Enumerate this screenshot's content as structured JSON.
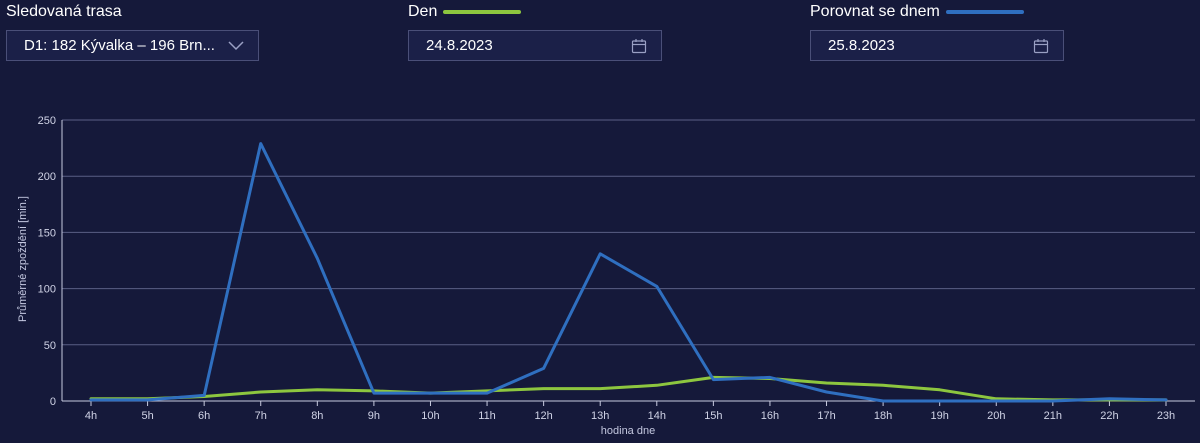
{
  "controls": {
    "route": {
      "label": "Sledovaná trasa",
      "value": "D1: 182 Kývalka – 196 Brn..."
    },
    "day": {
      "label": "Den",
      "value": "24.8.2023",
      "color": "#8dc63f"
    },
    "compare": {
      "label": "Porovnat se dnem",
      "value": "25.8.2023",
      "color": "#2f6fc0"
    }
  },
  "icons": {
    "dropdown": "chevron-down-icon",
    "calendar": "calendar-icon"
  },
  "chart_data": {
    "type": "line",
    "categories": [
      "4h",
      "5h",
      "6h",
      "7h",
      "8h",
      "9h",
      "10h",
      "11h",
      "12h",
      "13h",
      "14h",
      "15h",
      "16h",
      "17h",
      "18h",
      "19h",
      "20h",
      "21h",
      "22h",
      "23h"
    ],
    "series": [
      {
        "name": "Den",
        "color": "#8dc63f",
        "values": [
          2,
          2,
          4,
          8,
          10,
          9,
          7,
          9,
          11,
          11,
          14,
          21,
          20,
          16,
          14,
          10,
          2,
          1,
          1,
          1
        ]
      },
      {
        "name": "Porovnat se dnem",
        "color": "#2f6fc0",
        "values": [
          1,
          1,
          5,
          229,
          127,
          7,
          7,
          7,
          29,
          131,
          102,
          19,
          21,
          8,
          0,
          0,
          0,
          0,
          2,
          1
        ]
      }
    ],
    "xlabel": "hodina dne",
    "ylabel": "Průměrné zpoždění [min.]",
    "ylim": [
      0,
      250
    ],
    "yticks": [
      0,
      50,
      100,
      150,
      200,
      250
    ],
    "grid": true
  }
}
